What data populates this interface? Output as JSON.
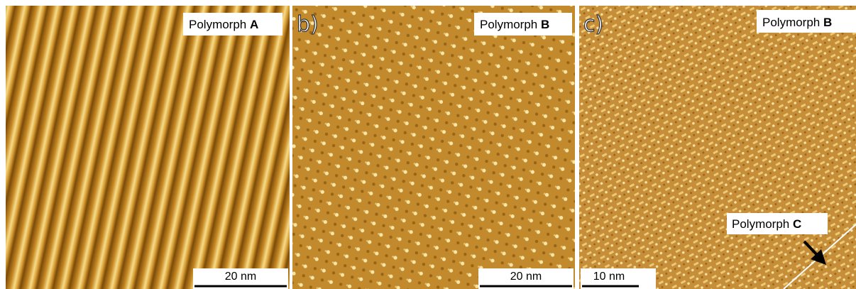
{
  "panels": [
    {
      "caption": "Polymorph",
      "caption_bold": "A",
      "scale_bar": "20 nm"
    },
    {
      "letter": "b)",
      "caption": "Polymorph",
      "caption_bold": "B",
      "scale_bar": "20 nm"
    },
    {
      "letter": "c)",
      "caption": "Polymorph",
      "caption_bold": "B",
      "scale_bar": "10 nm",
      "annotation": "Polymorph",
      "annotation_bold": "C"
    }
  ]
}
